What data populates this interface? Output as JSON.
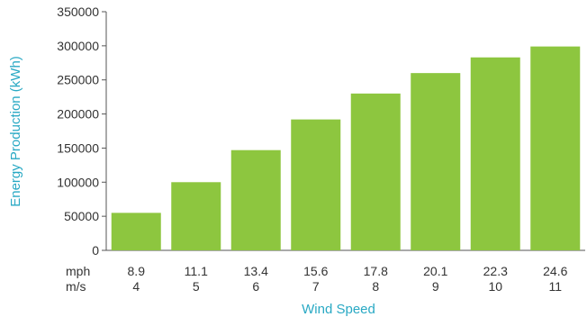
{
  "chart_data": {
    "type": "bar",
    "xlabel": "Wind Speed",
    "ylabel": "Energy Production (kWh)",
    "ylim": [
      0,
      350000
    ],
    "yticks": [
      "0",
      "50000",
      "100000",
      "150000",
      "200000",
      "250000",
      "300000",
      "350000"
    ],
    "unit_rows": [
      "mph",
      "m/s"
    ],
    "categories_mph": [
      "8.9",
      "11.1",
      "13.4",
      "15.6",
      "17.8",
      "20.1",
      "22.3",
      "24.6"
    ],
    "categories_ms": [
      "4",
      "5",
      "6",
      "7",
      "8",
      "9",
      "10",
      "11"
    ],
    "values": [
      55000,
      100000,
      147000,
      192000,
      230000,
      260000,
      283000,
      299000
    ],
    "bar_color": "#8dc63f",
    "axis_title_color": "#29a9c4",
    "grid": false,
    "legend": "none"
  }
}
